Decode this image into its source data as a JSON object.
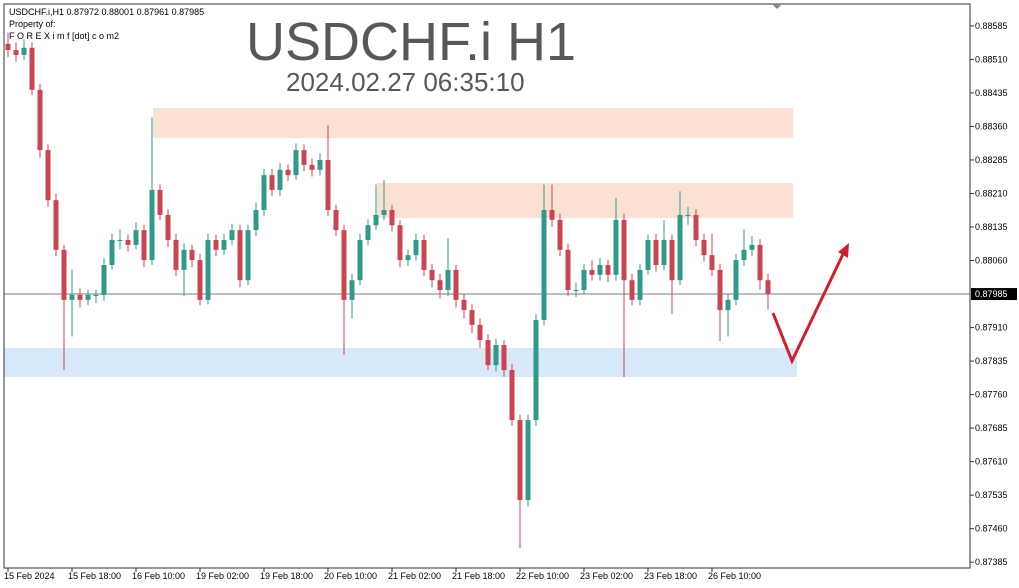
{
  "chart_data": {
    "type": "candlestick",
    "title": "USDCHF.i H1",
    "subtitle": "2024.02.27 06:35:10",
    "info_lines": [
      "USDCHF.i,H1  0.87972 0.88001 0.87961 0.87985",
      "Property of:",
      "F O R E X i m f [dot] c o m2"
    ],
    "up_color": "#2f9a8a",
    "down_color": "#cc4450",
    "ylim": [
      0.87372,
      0.88634
    ],
    "yticks": [
      0.88585,
      {
        "value": 0.8851,
        "label": "0.88510"
      },
      0.88435,
      {
        "value": 0.8836,
        "label": "0.88360"
      },
      0.88285,
      {
        "value": 0.8821,
        "label": "0.88210"
      },
      0.88135,
      {
        "value": 0.8806,
        "label": "0.88060"
      },
      {
        "value": 0.8791,
        "label": "0.87910"
      },
      0.87835,
      {
        "value": 0.8776,
        "label": "0.87760"
      },
      0.87685,
      {
        "value": 0.8761,
        "label": "0.87610"
      },
      0.87535,
      {
        "value": 0.8746,
        "label": "0.87460"
      },
      0.87385
    ],
    "last_price": 0.87985,
    "categories": [
      "15 Feb 2024",
      null,
      null,
      null,
      null,
      null,
      null,
      null,
      "15 Feb 18:00",
      null,
      null,
      null,
      null,
      null,
      null,
      null,
      "16 Feb 10:00",
      null,
      null,
      null,
      null,
      null,
      null,
      null,
      "19 Feb 02:00",
      null,
      null,
      null,
      null,
      null,
      null,
      null,
      "19 Feb 18:00",
      null,
      null,
      null,
      null,
      null,
      null,
      null,
      "20 Feb 10:00",
      null,
      null,
      null,
      null,
      null,
      null,
      null,
      "21 Feb 02:00",
      null,
      null,
      null,
      null,
      null,
      null,
      null,
      "21 Feb 18:00",
      null,
      null,
      null,
      null,
      null,
      null,
      null,
      "22 Feb 10:00",
      null,
      null,
      null,
      null,
      null,
      null,
      null,
      "23 Feb 02:00",
      null,
      null,
      null,
      null,
      null,
      null,
      null,
      "23 Feb 18:00",
      null,
      null,
      null,
      null,
      null,
      null,
      null,
      "26 Feb 10:00",
      null,
      null,
      null,
      null,
      null,
      null,
      null
    ],
    "open": [
      0.88545,
      0.88531,
      0.8852,
      0.88536,
      0.88442,
      0.88307,
      0.88195,
      0.88084,
      0.87972,
      0.87983,
      0.87972,
      0.87983,
      0.87983,
      0.8805,
      0.88106,
      0.88106,
      0.88095,
      0.88128,
      0.88061,
      0.88218,
      0.88162,
      0.88106,
      0.88039,
      0.88084,
      0.88061,
      0.87972,
      0.88106,
      0.88084,
      0.88106,
      0.88128,
      0.88016,
      0.88128,
      0.88173,
      0.88251,
      0.88218,
      0.88263,
      0.88251,
      0.88307,
      0.88274,
      0.88263,
      0.88285,
      0.88173,
      0.88128,
      0.87972,
      0.88016,
      0.88106,
      0.88139,
      0.88162,
      0.88173,
      0.88139,
      0.88061,
      0.88072,
      0.88106,
      0.88039,
      0.88016,
      0.87994,
      0.88039,
      0.87972,
      0.87949,
      0.87916,
      0.87882,
      0.87826,
      0.87871,
      0.87815,
      0.87703,
      0.87524,
      0.87703,
      0.87927,
      0.88173,
      0.88151,
      0.88084,
      0.87994,
      0.87994,
      0.88039,
      0.88028,
      0.8805,
      0.88028,
      0.88151,
      0.88016,
      0.87972,
      0.88039,
      0.88106,
      0.8805,
      0.88106,
      0.88016,
      0.88162,
      0.88162,
      0.88106,
      0.88072,
      0.88039,
      0.87949,
      0.87972,
      0.88061,
      0.88084,
      0.88095,
      0.88016
    ],
    "high": [
      0.8857,
      0.88548,
      0.88555,
      0.88548,
      0.88455,
      0.8832,
      0.8821,
      0.88095,
      0.8804,
      0.87998,
      0.87995,
      0.87995,
      0.88065,
      0.8812,
      0.8813,
      0.88118,
      0.88145,
      0.8814,
      0.8838,
      0.8823,
      0.88175,
      0.8812,
      0.88098,
      0.88095,
      0.88075,
      0.8812,
      0.88118,
      0.8812,
      0.88142,
      0.8814,
      0.8814,
      0.8819,
      0.88265,
      0.88265,
      0.88278,
      0.88275,
      0.88322,
      0.8832,
      0.88288,
      0.883,
      0.88363,
      0.88185,
      0.8814,
      0.8803,
      0.8812,
      0.88152,
      0.8823,
      0.8824,
      0.88185,
      0.8815,
      0.88085,
      0.8812,
      0.88118,
      0.88052,
      0.8803,
      0.8811,
      0.8805,
      0.87985,
      0.87962,
      0.8793,
      0.87895,
      0.87885,
      0.87882,
      0.87828,
      0.87715,
      0.87715,
      0.8794,
      0.8823,
      0.8823,
      0.88165,
      0.88098,
      0.8801,
      0.88052,
      0.8806,
      0.88065,
      0.88062,
      0.882,
      0.88165,
      0.8803,
      0.88052,
      0.88118,
      0.8812,
      0.8815,
      0.88118,
      0.88215,
      0.8818,
      0.88175,
      0.8812,
      0.8812,
      0.88052,
      0.87985,
      0.88075,
      0.8813,
      0.88115,
      0.88108,
      0.8803
    ],
    "low": [
      0.88515,
      0.88505,
      0.88508,
      0.8843,
      0.8829,
      0.8818,
      0.8807,
      0.87815,
      0.8789,
      0.87955,
      0.8796,
      0.87965,
      0.8797,
      0.8804,
      0.88085,
      0.8808,
      0.88085,
      0.88045,
      0.8805,
      0.8815,
      0.8809,
      0.88025,
      0.8798,
      0.88045,
      0.8796,
      0.87962,
      0.8807,
      0.88072,
      0.88095,
      0.88,
      0.88005,
      0.88115,
      0.8816,
      0.88205,
      0.88205,
      0.88238,
      0.8824,
      0.8826,
      0.88248,
      0.8825,
      0.8816,
      0.88115,
      0.87849,
      0.8793,
      0.88005,
      0.88095,
      0.88128,
      0.8815,
      0.88125,
      0.88045,
      0.88048,
      0.8806,
      0.88025,
      0.88,
      0.87975,
      0.8798,
      0.87955,
      0.8793,
      0.87898,
      0.87865,
      0.87815,
      0.87812,
      0.878,
      0.8769,
      0.87416,
      0.8751,
      0.8769,
      0.87915,
      0.88135,
      0.8807,
      0.8798,
      0.87978,
      0.87985,
      0.88015,
      0.88015,
      0.88012,
      0.88015,
      0.87799,
      0.8796,
      0.8796,
      0.88028,
      0.88035,
      0.88038,
      0.8794,
      0.88005,
      0.8814,
      0.88092,
      0.88058,
      0.88025,
      0.8788,
      0.8789,
      0.8796,
      0.88048,
      0.8807,
      0.87995,
      0.8795
    ],
    "close": [
      0.88531,
      0.8852,
      0.88536,
      0.88442,
      0.88307,
      0.88195,
      0.88084,
      0.87972,
      0.87983,
      0.87972,
      0.87983,
      0.87983,
      0.8805,
      0.88106,
      0.88106,
      0.88095,
      0.88128,
      0.88061,
      0.88218,
      0.88162,
      0.88106,
      0.88039,
      0.88084,
      0.88061,
      0.87972,
      0.88106,
      0.88084,
      0.88106,
      0.88128,
      0.88016,
      0.88128,
      0.88173,
      0.88251,
      0.88218,
      0.88263,
      0.88251,
      0.88307,
      0.88274,
      0.88263,
      0.88285,
      0.88173,
      0.88128,
      0.87972,
      0.88016,
      0.88106,
      0.88139,
      0.88162,
      0.88173,
      0.88139,
      0.88061,
      0.88072,
      0.88106,
      0.88039,
      0.88016,
      0.87994,
      0.88039,
      0.87972,
      0.87949,
      0.87916,
      0.87882,
      0.87826,
      0.87871,
      0.87815,
      0.87703,
      0.87524,
      0.87703,
      0.87927,
      0.88173,
      0.88151,
      0.88084,
      0.87994,
      0.87994,
      0.88039,
      0.88028,
      0.8805,
      0.88028,
      0.88151,
      0.88016,
      0.87972,
      0.88039,
      0.88106,
      0.8805,
      0.88106,
      0.88016,
      0.88162,
      0.88162,
      0.88106,
      0.88072,
      0.88039,
      0.87949,
      0.87972,
      0.88061,
      0.88084,
      0.88095,
      0.88016,
      0.87985
    ]
  }
}
